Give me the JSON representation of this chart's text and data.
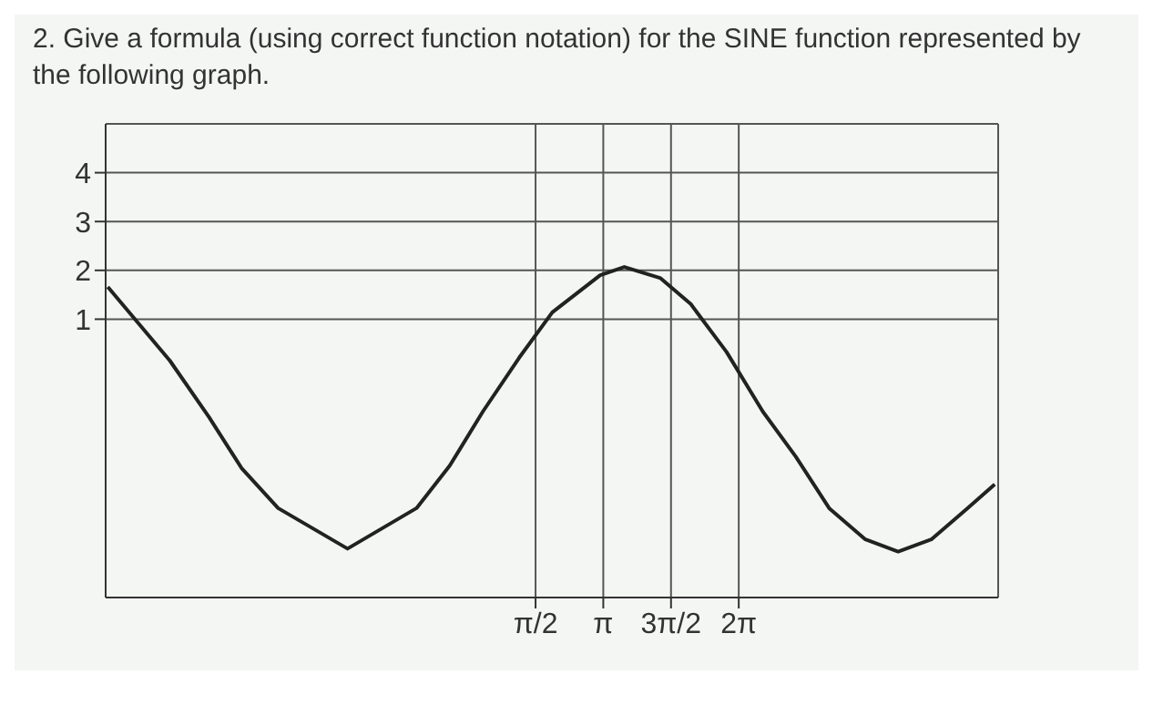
{
  "chart_data": {
    "type": "line",
    "title": "2. Give a formula (using correct function notation) for the SINE function represented by the following graph.",
    "x": [
      -8.35,
      -6.91,
      -6.0,
      -5.24,
      -4.4,
      -2.79,
      -1.19,
      -0.42,
      0.35,
      1.19,
      1.96,
      3.07,
      3.63,
      4.47,
      5.17,
      6.0,
      6.84,
      7.61,
      8.38,
      9.22,
      9.98,
      10.75,
      11.59,
      12.22
    ],
    "series": [
      {
        "color": "#222222",
        "values": [
          1.66,
          0.15,
          -1.01,
          -2.06,
          -2.87,
          -3.7,
          -2.87,
          -2.0,
          -0.89,
          0.21,
          1.14,
          1.9,
          2.07,
          1.84,
          1.31,
          0.33,
          -0.89,
          -1.82,
          -2.87,
          -3.51,
          -3.76,
          -3.51,
          -2.87,
          -2.38
        ]
      }
    ],
    "xlim": [
      -8.4,
      12.3
    ],
    "xticks": [
      {
        "value": 1.5708,
        "label": "π/2"
      },
      {
        "value": 3.1416,
        "label": "π"
      },
      {
        "value": 4.7124,
        "label": "3π/2"
      },
      {
        "value": 6.2832,
        "label": "2π"
      }
    ],
    "ylim": [
      -4.7,
      5
    ],
    "yticks": [
      1,
      2,
      3,
      4
    ],
    "grid": true,
    "marker": "none",
    "line_style": "solid"
  }
}
